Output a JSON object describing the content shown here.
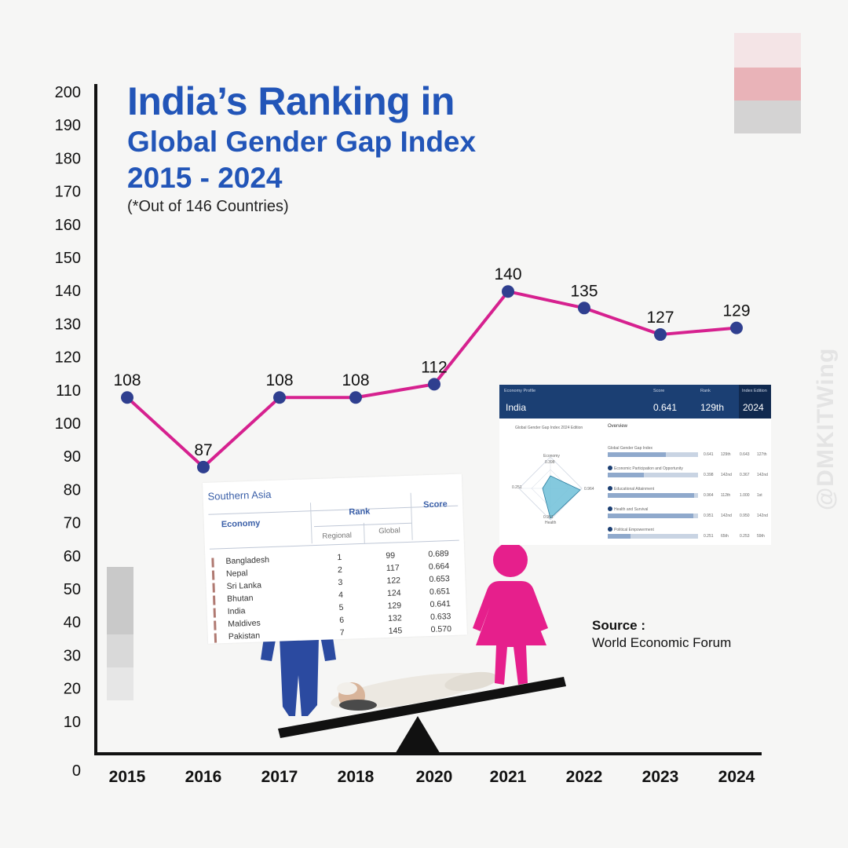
{
  "title": {
    "line1": "India’s Ranking in",
    "line2": "Global Gender Gap Index",
    "line3": "2015 - 2024",
    "subtitle": "(*Out of 146 Countries)"
  },
  "source": {
    "label": "Source :",
    "value": "World Economic Forum"
  },
  "watermark": "@DMKITWing",
  "colors": {
    "title": "#2255b8",
    "line": "#d6218f",
    "marker": "#2f3f8f",
    "axis": "#111111",
    "male": "#2b4aa0",
    "female": "#e61f8c"
  },
  "chart_data": {
    "type": "line",
    "title": "India’s Ranking in Global Gender Gap Index 2015 - 2024",
    "xlabel": "",
    "ylabel": "",
    "categories": [
      "2015",
      "2016",
      "2017",
      "2018",
      "2020",
      "2021",
      "2022",
      "2023",
      "2024"
    ],
    "series": [
      {
        "name": "India rank",
        "values": [
          108,
          87,
          108,
          108,
          112,
          140,
          135,
          127,
          129
        ]
      }
    ],
    "ylim": [
      0,
      200
    ],
    "yticks": [
      "0",
      "10",
      "20",
      "30",
      "40",
      "50",
      "60",
      "70",
      "80",
      "90",
      "100",
      "110",
      "120",
      "130",
      "140",
      "150",
      "160",
      "170",
      "180",
      "190",
      "200"
    ],
    "grid": false,
    "legend": "none"
  },
  "south_asia_table": {
    "region": "Southern Asia",
    "headers": {
      "economy": "Economy",
      "rank": "Rank",
      "regional": "Regional",
      "global": "Global",
      "score": "Score"
    },
    "rows": [
      {
        "economy": "Bangladesh",
        "regional": "1",
        "global": "99",
        "score": "0.689"
      },
      {
        "economy": "Nepal",
        "regional": "2",
        "global": "117",
        "score": "0.664"
      },
      {
        "economy": "Sri Lanka",
        "regional": "3",
        "global": "122",
        "score": "0.653"
      },
      {
        "economy": "Bhutan",
        "regional": "4",
        "global": "124",
        "score": "0.651"
      },
      {
        "economy": "India",
        "regional": "5",
        "global": "129",
        "score": "0.641"
      },
      {
        "economy": "Maldives",
        "regional": "6",
        "global": "132",
        "score": "0.633"
      },
      {
        "economy": "Pakistan",
        "regional": "7",
        "global": "145",
        "score": "0.570"
      }
    ]
  },
  "india_profile": {
    "label": "Economy Profile",
    "country": "India",
    "score_label": "Score",
    "score": "0.641",
    "rank_label": "Rank",
    "rank": "129th",
    "edition_label": "Index Edition",
    "edition": "2024",
    "overview": "Overview",
    "chart_caption": "Global Gender Gap Index 2024 Edition",
    "radar_axes": {
      "top": "Economy",
      "right": "Education",
      "bottom": "Health",
      "left": "Politics"
    },
    "radar_values": {
      "economy": "0.398",
      "education": "0.964",
      "health": "0.951",
      "politics": "0.251"
    },
    "rows": [
      {
        "label": "Global Gender Gap Index",
        "score1": "0.641",
        "rank1": "129th",
        "score2": "0.643",
        "rank2": "127th",
        "fill": 0.64
      },
      {
        "label": "Economic Participation and Opportunity",
        "score1": "0.398",
        "rank1": "142nd",
        "score2": "0.367",
        "rank2": "142nd",
        "fill": 0.4
      },
      {
        "label": "Educational Attainment",
        "score1": "0.964",
        "rank1": "112th",
        "score2": "1.000",
        "rank2": "1st",
        "fill": 0.96
      },
      {
        "label": "Health and Survival",
        "score1": "0.951",
        "rank1": "142nd",
        "score2": "0.950",
        "rank2": "142nd",
        "fill": 0.95
      },
      {
        "label": "Political Empowerment",
        "score1": "0.251",
        "rank1": "65th",
        "score2": "0.253",
        "rank2": "59th",
        "fill": 0.25
      }
    ]
  }
}
